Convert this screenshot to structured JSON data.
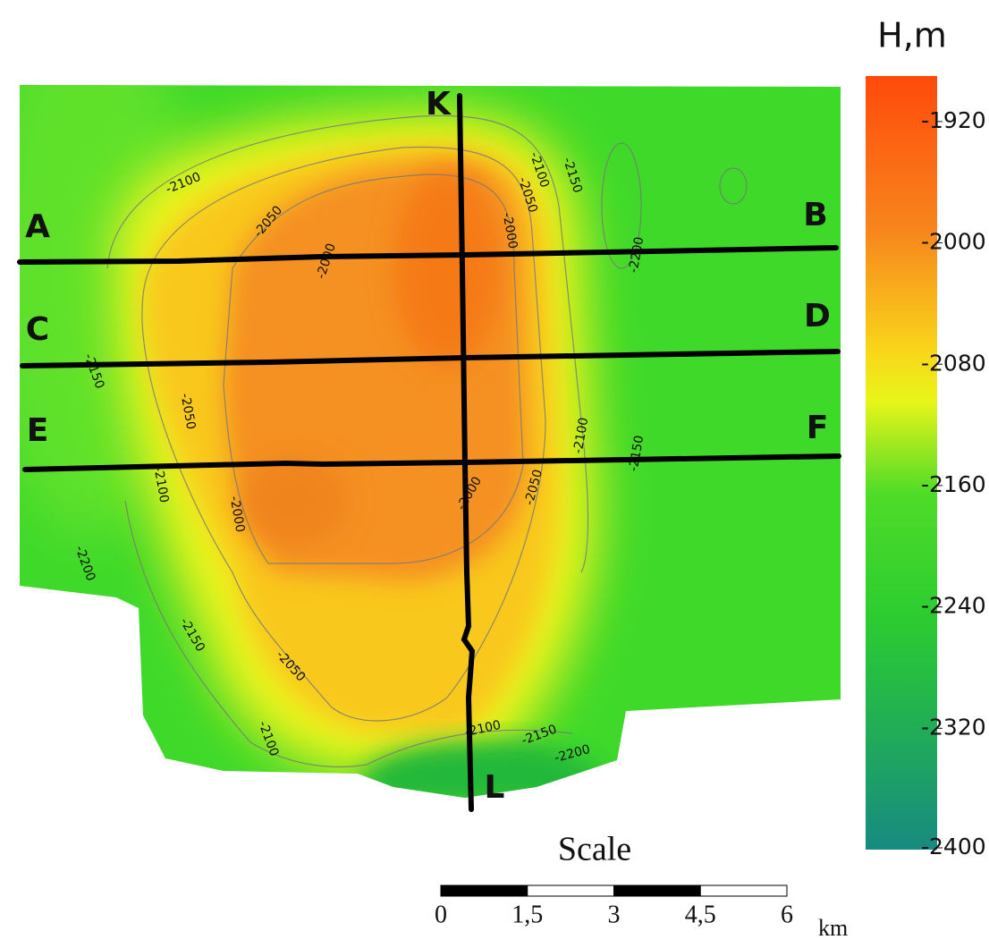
{
  "colorbar": {
    "title": "H,m",
    "range": [
      -1890,
      -2400
    ],
    "ticks": [
      -1920,
      -2000,
      -2080,
      -2160,
      -2240,
      -2320,
      -2400
    ]
  },
  "profiles": [
    {
      "start": "A",
      "end": "B"
    },
    {
      "start": "C",
      "end": "D"
    },
    {
      "start": "E",
      "end": "F"
    },
    {
      "start": "K",
      "end": "L"
    }
  ],
  "contour_labels": [
    "-2100",
    "-2050",
    "-2000",
    "-2100",
    "-2050",
    "-2000",
    "-2150",
    "-2200",
    "-2150",
    "-2050",
    "-2100",
    "-2000",
    "-2000",
    "-2050",
    "-2100",
    "-2150",
    "-2200",
    "-2150",
    "-2050",
    "-2100",
    "-2100",
    "-2150",
    "-2200"
  ],
  "scale_bar": {
    "title": "Scale",
    "labels": [
      "0",
      "1,5",
      "3",
      "4,5",
      "6"
    ],
    "unit": "km"
  }
}
